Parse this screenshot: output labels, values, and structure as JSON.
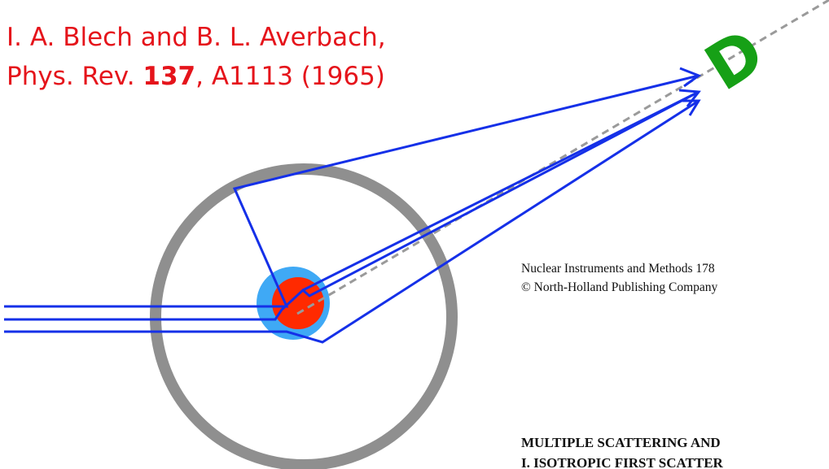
{
  "reference": {
    "line1": "I. A. Blech and B. L. Averbach,",
    "journal": "Phys. Rev. ",
    "volume": "137",
    "pages": ", A1113 (1965)"
  },
  "detector": {
    "label": "D"
  },
  "paper": {
    "journal_line": "Nuclear Instruments and Methods 178",
    "publisher_line": "© North-Holland Publishing Company",
    "title_line1": "MULTIPLE SCATTERING AND",
    "title_line2": "I. ISOTROPIC FIRST SCATTER"
  }
}
